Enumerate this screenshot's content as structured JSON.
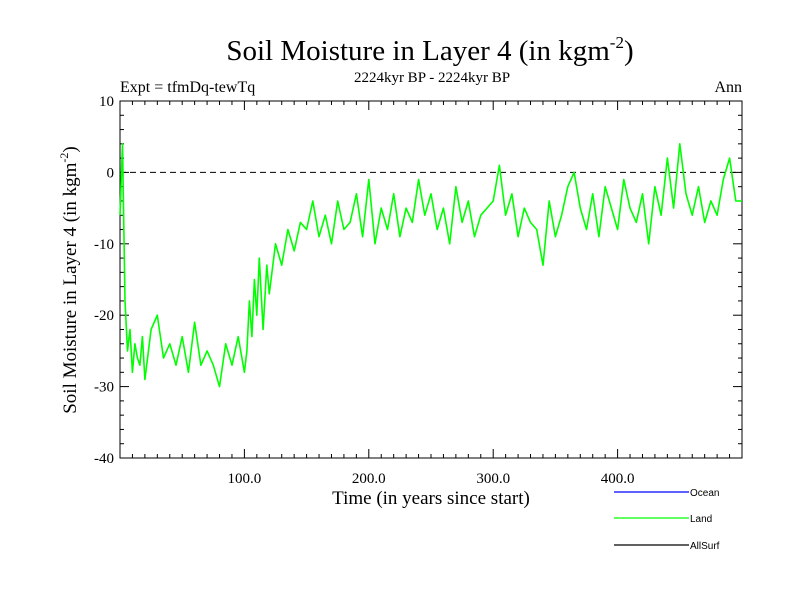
{
  "chart_data": {
    "type": "line",
    "title": "Soil Moisture in Layer 4 (in kgm",
    "title_sup": "-2",
    "title_close": ")",
    "subtitle": "2224kyr BP - 2224kyr BP",
    "expt_label": "Expt = tfmDq-tewTq",
    "season_label": "Ann",
    "xlabel": "Time (in years since start)",
    "ylabel": "Soil Moisture in Layer 4 (in kgm",
    "ylabel_sup": "-2",
    "ylabel_close": ")",
    "xlim": [
      0,
      500
    ],
    "ylim": [
      -40,
      10
    ],
    "x_ticks": [
      100,
      200,
      300,
      400
    ],
    "x_tick_labels": [
      "100.0",
      "200.0",
      "300.0",
      "400.0"
    ],
    "y_ticks": [
      10,
      0,
      -10,
      -20,
      -30,
      -40
    ],
    "y_tick_labels": [
      "10",
      "0",
      "-10",
      "-20",
      "-30",
      "-40"
    ],
    "reference_line": 0,
    "legend": [
      {
        "name": "Ocean",
        "color": "#0000ff"
      },
      {
        "name": "Land",
        "color": "#00ff00"
      },
      {
        "name": "AllSurf",
        "color": "#000000"
      }
    ],
    "series": [
      {
        "name": "Land",
        "color": "#00ff00",
        "x": [
          0,
          2,
          4,
          6,
          8,
          10,
          12,
          14,
          16,
          18,
          20,
          25,
          30,
          35,
          40,
          45,
          50,
          55,
          60,
          65,
          70,
          75,
          80,
          85,
          90,
          95,
          100,
          102,
          104,
          106,
          108,
          110,
          112,
          115,
          118,
          120,
          125,
          130,
          135,
          140,
          145,
          150,
          155,
          160,
          165,
          170,
          175,
          180,
          185,
          190,
          195,
          200,
          205,
          210,
          215,
          220,
          225,
          230,
          235,
          240,
          245,
          250,
          255,
          260,
          265,
          270,
          275,
          280,
          285,
          290,
          295,
          300,
          305,
          310,
          315,
          320,
          325,
          330,
          335,
          340,
          345,
          350,
          355,
          360,
          365,
          370,
          375,
          380,
          385,
          390,
          395,
          400,
          405,
          410,
          415,
          420,
          425,
          430,
          435,
          440,
          445,
          450,
          455,
          460,
          465,
          470,
          475,
          480,
          485,
          490,
          495,
          500
        ],
        "values": [
          -6,
          4,
          -18,
          -25,
          -22,
          -28,
          -24,
          -26,
          -27,
          -23,
          -29,
          -22,
          -20,
          -26,
          -24,
          -27,
          -23,
          -28,
          -21,
          -27,
          -25,
          -27,
          -30,
          -24,
          -27,
          -23,
          -28,
          -25,
          -18,
          -23,
          -15,
          -20,
          -12,
          -22,
          -13,
          -17,
          -10,
          -13,
          -8,
          -11,
          -7,
          -8,
          -4,
          -9,
          -6,
          -10,
          -4,
          -8,
          -7,
          -3,
          -9,
          -1,
          -10,
          -5,
          -8,
          -3,
          -9,
          -5,
          -7,
          -1,
          -6,
          -3,
          -8,
          -5,
          -10,
          -2,
          -7,
          -4,
          -9,
          -6,
          -5,
          -4,
          1,
          -6,
          -3,
          -9,
          -5,
          -7,
          -8,
          -13,
          -4,
          -9,
          -6,
          -2,
          0,
          -5,
          -8,
          -3,
          -9,
          -2,
          -5,
          -8,
          -1,
          -5,
          -7,
          -3,
          -10,
          -2,
          -6,
          2,
          -5,
          4,
          -3,
          -6,
          -2,
          -7,
          -4,
          -6,
          -1,
          2,
          -4,
          -4
        ]
      }
    ]
  }
}
